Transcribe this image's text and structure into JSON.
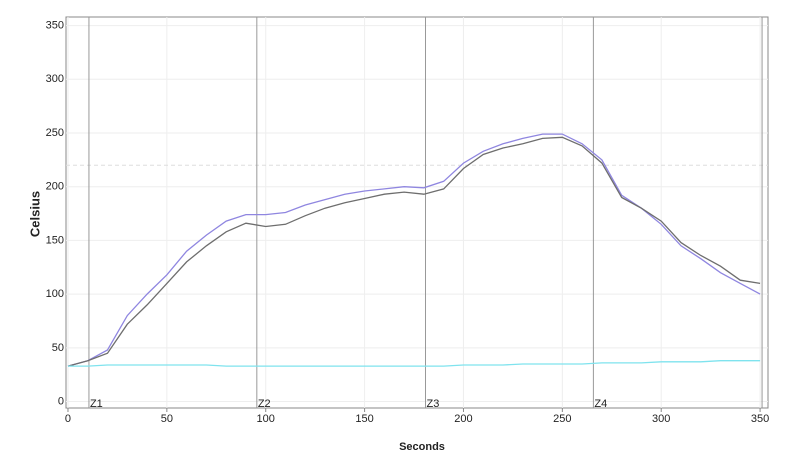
{
  "chart_data": {
    "type": "line",
    "x_label": "Seconds",
    "y_label": "Celsius",
    "x": [
      0,
      10,
      20,
      30,
      40,
      50,
      60,
      70,
      80,
      90,
      100,
      110,
      120,
      130,
      140,
      150,
      160,
      170,
      180,
      190,
      200,
      210,
      220,
      230,
      240,
      250,
      260,
      270,
      280,
      290,
      300,
      310,
      320,
      330,
      340,
      350
    ],
    "series": [
      {
        "color": "#8f86e0",
        "values": [
          33,
          38,
          48,
          80,
          100,
          118,
          140,
          155,
          168,
          174,
          174,
          176,
          183,
          188,
          193,
          196,
          198,
          200,
          199,
          205,
          222,
          233,
          240,
          245,
          249,
          249,
          240,
          225,
          192,
          180,
          165,
          145,
          133,
          120,
          110,
          100
        ]
      },
      {
        "color": "#6e6e6e",
        "values": [
          33,
          38,
          45,
          72,
          90,
          110,
          130,
          145,
          158,
          166,
          163,
          165,
          173,
          180,
          185,
          189,
          193,
          195,
          193,
          198,
          217,
          230,
          236,
          240,
          245,
          246,
          238,
          222,
          190,
          180,
          168,
          148,
          136,
          126,
          113,
          110
        ]
      },
      {
        "color": "#7fe3ee",
        "values": [
          33,
          33,
          34,
          34,
          34,
          34,
          34,
          34,
          33,
          33,
          33,
          33,
          33,
          33,
          33,
          33,
          33,
          33,
          33,
          33,
          34,
          34,
          34,
          35,
          35,
          35,
          35,
          36,
          36,
          36,
          37,
          37,
          37,
          38,
          38,
          38
        ]
      }
    ],
    "zones": {
      "x": [
        10.6,
        95.5,
        180.8,
        265.7,
        351
      ],
      "labels": [
        "Z1",
        "Z2",
        "Z3",
        "Z4",
        null
      ]
    },
    "reference_line": 220,
    "xlim": [
      -1,
      354
    ],
    "ylim": [
      -6,
      358
    ],
    "xticks": [
      0,
      50,
      100,
      150,
      200,
      250,
      300,
      350
    ],
    "yticks": [
      0,
      50,
      100,
      150,
      200,
      250,
      300,
      350
    ],
    "grid": true
  }
}
